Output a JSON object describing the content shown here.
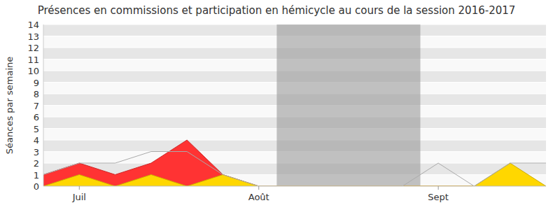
{
  "chart_data": {
    "type": "line",
    "title": "Présences en commissions et participation en hémicycle au cours de la session 2016-2017",
    "y_label": "Séances par semaine",
    "categories": [
      null,
      "Juil",
      null,
      null,
      null,
      null,
      "Août",
      null,
      null,
      null,
      null,
      "Sept",
      null,
      null,
      null
    ],
    "series": [
      {
        "type": "area",
        "color": "#ff3333",
        "values": [
          1,
          2,
          1,
          2,
          4,
          1,
          0,
          0,
          0,
          0,
          0,
          0,
          0,
          0,
          0
        ]
      },
      {
        "type": "area",
        "color": "#ffd700",
        "values": [
          0,
          1,
          0,
          1,
          0,
          1,
          0,
          0,
          0,
          0,
          0,
          0,
          0,
          2,
          0
        ]
      },
      {
        "type": "line",
        "color": "#aaaaaa",
        "values": [
          1,
          2,
          2,
          3,
          3,
          1,
          0,
          0,
          0,
          0,
          0,
          2,
          0,
          2,
          2
        ]
      }
    ],
    "highlight_band": {
      "from": 6.5,
      "to": 10.5
    },
    "ylim": [
      0,
      14
    ],
    "yticks": [
      0,
      1,
      2,
      3,
      4,
      5,
      6,
      7,
      8,
      9,
      10,
      11,
      12,
      13,
      14
    ],
    "grid": true
  }
}
